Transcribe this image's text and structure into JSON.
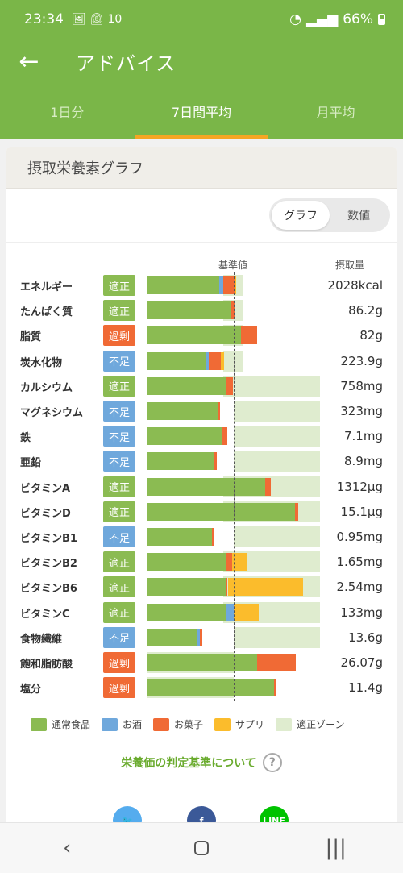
{
  "status": {
    "time": "23:34",
    "notif": "🖼 ⏲ 10",
    "battery": "66%"
  },
  "appbar": {
    "title": "アドバイス"
  },
  "tabs": [
    {
      "label": "1日分",
      "active": false
    },
    {
      "label": "7日間平均",
      "active": true
    },
    {
      "label": "月平均",
      "active": false
    }
  ],
  "card": {
    "title": "摂取栄養素グラフ",
    "toggle": {
      "graph": "グラフ",
      "values": "数値"
    },
    "ref_label": "基準値",
    "intake_label": "摂取量"
  },
  "colors": {
    "normal": "#8bbb52",
    "alcohol": "#6fa8dc",
    "sweets": "#f06a35",
    "supplement": "#fbbc2c",
    "zone": "#dfeccf",
    "badge_ok": "#8bbb52",
    "badge_over": "#f06a35",
    "badge_under": "#6fa8dc"
  },
  "chart_data": {
    "type": "bar",
    "reference": "基準値",
    "rows": [
      {
        "name": "エネルギー",
        "status": "適正",
        "value": "2028kcal",
        "zone": [
          0.88,
          1.1
        ],
        "normal": 0.83,
        "alcohol": 0.05,
        "sweets": 0.13,
        "supplement": 0.02
      },
      {
        "name": "たんぱく質",
        "status": "適正",
        "value": "86.2g",
        "zone": [
          0.88,
          1.1
        ],
        "normal": 0.97,
        "alcohol": 0,
        "sweets": 0.04,
        "supplement": 0
      },
      {
        "name": "脂質",
        "status": "過剰",
        "value": "82g",
        "zone": [
          0.88,
          1.1
        ],
        "normal": 1.08,
        "alcohol": 0,
        "sweets": 0.19,
        "supplement": 0
      },
      {
        "name": "炭水化物",
        "status": "不足",
        "value": "223.9g",
        "zone": [
          0.88,
          1.1
        ],
        "normal": 0.68,
        "alcohol": 0.03,
        "sweets": 0.14,
        "supplement": 0.04
      },
      {
        "name": "カルシウム",
        "status": "適正",
        "value": "758mg",
        "zone": [
          0.88,
          2.0
        ],
        "normal": 0.92,
        "alcohol": 0,
        "sweets": 0.07,
        "supplement": 0
      },
      {
        "name": "マグネシウム",
        "status": "不足",
        "value": "323mg",
        "zone": [
          1.0,
          2.0
        ],
        "normal": 0.82,
        "alcohol": 0,
        "sweets": 0.02,
        "supplement": 0
      },
      {
        "name": "鉄",
        "status": "不足",
        "value": "7.1mg",
        "zone": [
          1.0,
          2.0
        ],
        "normal": 0.87,
        "alcohol": 0,
        "sweets": 0.06,
        "supplement": 0
      },
      {
        "name": "亜鉛",
        "status": "不足",
        "value": "8.9mg",
        "zone": [
          1.0,
          2.0
        ],
        "normal": 0.77,
        "alcohol": 0,
        "sweets": 0.03,
        "supplement": 0
      },
      {
        "name": "ビタミンA",
        "status": "適正",
        "value": "1312μg",
        "zone": [
          0.88,
          2.0
        ],
        "normal": 1.36,
        "alcohol": 0,
        "sweets": 0.07,
        "supplement": 0
      },
      {
        "name": "ビタミンD",
        "status": "適正",
        "value": "15.1μg",
        "zone": [
          0.88,
          2.0
        ],
        "normal": 1.71,
        "alcohol": 0,
        "sweets": 0.04,
        "supplement": 0
      },
      {
        "name": "ビタミンB1",
        "status": "不足",
        "value": "0.95mg",
        "zone": [
          1.0,
          2.0
        ],
        "normal": 0.75,
        "alcohol": 0,
        "sweets": 0.02,
        "supplement": 0
      },
      {
        "name": "ビタミンB2",
        "status": "適正",
        "value": "1.65mg",
        "zone": [
          0.88,
          2.0
        ],
        "normal": 0.91,
        "alcohol": 0,
        "sweets": 0.07,
        "supplement": 0.18
      },
      {
        "name": "ビタミンB6",
        "status": "適正",
        "value": "2.54mg",
        "zone": [
          0.88,
          2.0
        ],
        "normal": 0.91,
        "alcohol": 0,
        "sweets": 0.02,
        "supplement": 0.87
      },
      {
        "name": "ビタミンC",
        "status": "適正",
        "value": "133mg",
        "zone": [
          0.88,
          2.0
        ],
        "normal": 0.91,
        "alcohol": 0.09,
        "sweets": 0,
        "supplement": 0.29
      },
      {
        "name": "食物繊維",
        "status": "不足",
        "value": "13.6g",
        "zone": [
          1.0,
          2.0
        ],
        "normal": 0.58,
        "alcohol": 0.03,
        "sweets": 0.03,
        "supplement": 0
      },
      {
        "name": "飽和脂肪酸",
        "status": "過剰",
        "value": "26.07g",
        "zone": [
          0.0,
          1.0
        ],
        "normal": 1.27,
        "alcohol": 0,
        "sweets": 0.45,
        "supplement": 0
      },
      {
        "name": "塩分",
        "status": "過剰",
        "value": "11.4g",
        "zone": [
          0.0,
          1.0
        ],
        "normal": 1.47,
        "alcohol": 0,
        "sweets": 0.03,
        "supplement": 0
      }
    ]
  },
  "legend": [
    {
      "label": "通常食品",
      "color": "#8bbb52"
    },
    {
      "label": "お酒",
      "color": "#6fa8dc"
    },
    {
      "label": "お菓子",
      "color": "#f06a35"
    },
    {
      "label": "サプリ",
      "color": "#fbbc2c"
    },
    {
      "label": "適正ゾーン",
      "color": "#dfeccf"
    }
  ],
  "criteria_link": "栄養価の判定基準について",
  "share": [
    {
      "name": "twitter-icon",
      "glyph": "🐦",
      "color": "#55acee"
    },
    {
      "name": "facebook-icon",
      "glyph": "f",
      "color": "#3b5998"
    },
    {
      "name": "line-icon",
      "glyph": "LINE",
      "color": "#00c300"
    }
  ]
}
